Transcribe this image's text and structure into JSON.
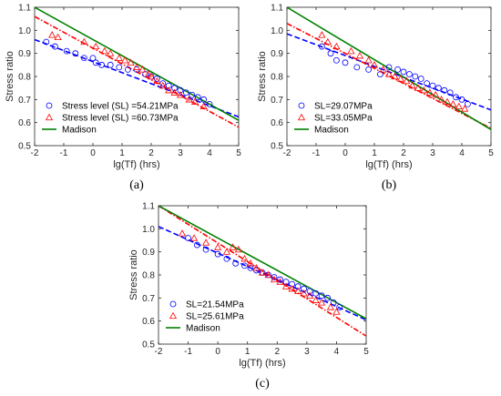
{
  "colors": {
    "series1": "#0000ff",
    "series2": "#ff0000",
    "madison": "#008000",
    "axis": "#262626"
  },
  "chart_data": [
    {
      "panel_label": "(a)",
      "type": "scatter",
      "xlabel": "lg(Tf) (hrs)",
      "ylabel": "Stress ratio",
      "xlim": [
        -2,
        5
      ],
      "ylim": [
        0.5,
        1.1
      ],
      "xticks": [
        "-2",
        "-1",
        "0",
        "1",
        "2",
        "3",
        "4",
        "5"
      ],
      "yticks": [
        "0.5",
        "0.6",
        "0.7",
        "0.8",
        "0.9",
        "1.0",
        "1.1"
      ],
      "legend_position": "bottom-left",
      "series": [
        {
          "name": "Stress level (SL) =54.21MPa",
          "marker": "circle",
          "color": "#0000ff",
          "points": [
            [
              -1.6,
              0.95
            ],
            [
              -1.3,
              0.93
            ],
            [
              -0.9,
              0.91
            ],
            [
              -0.6,
              0.9
            ],
            [
              -0.3,
              0.88
            ],
            [
              0.0,
              0.88
            ],
            [
              0.1,
              0.86
            ],
            [
              0.3,
              0.85
            ],
            [
              0.6,
              0.85
            ],
            [
              0.9,
              0.84
            ],
            [
              1.2,
              0.83
            ],
            [
              1.5,
              0.83
            ],
            [
              1.8,
              0.81
            ],
            [
              2.0,
              0.8
            ],
            [
              2.2,
              0.79
            ],
            [
              2.4,
              0.77
            ],
            [
              2.6,
              0.76
            ],
            [
              2.8,
              0.75
            ],
            [
              3.0,
              0.74
            ],
            [
              3.2,
              0.73
            ],
            [
              3.4,
              0.72
            ],
            [
              3.6,
              0.71
            ],
            [
              3.8,
              0.7
            ],
            [
              4.0,
              0.68
            ]
          ],
          "fit_line": [
            [
              -2,
              0.96
            ],
            [
              5,
              0.625
            ]
          ]
        },
        {
          "name": "Stress level (SL) =60.73MPa",
          "marker": "triangle",
          "color": "#ff0000",
          "points": [
            [
              -1.4,
              0.98
            ],
            [
              -1.2,
              0.97
            ],
            [
              -0.3,
              0.95
            ],
            [
              0.1,
              0.93
            ],
            [
              0.4,
              0.91
            ],
            [
              0.6,
              0.9
            ],
            [
              0.9,
              0.88
            ],
            [
              1.1,
              0.87
            ],
            [
              1.3,
              0.86
            ],
            [
              1.5,
              0.84
            ],
            [
              1.7,
              0.83
            ],
            [
              1.9,
              0.81
            ],
            [
              2.0,
              0.8
            ],
            [
              2.2,
              0.78
            ],
            [
              2.4,
              0.76
            ],
            [
              2.6,
              0.74
            ],
            [
              2.8,
              0.73
            ],
            [
              3.0,
              0.72
            ],
            [
              3.3,
              0.7
            ],
            [
              3.5,
              0.69
            ],
            [
              3.8,
              0.67
            ]
          ],
          "fit_line": [
            [
              -2,
              1.06
            ],
            [
              5,
              0.58
            ]
          ]
        },
        {
          "name": "Madison",
          "line_style": "solid",
          "color": "#008000",
          "points": [
            [
              -2,
              1.1
            ],
            [
              5,
              0.61
            ]
          ]
        }
      ]
    },
    {
      "panel_label": "(b)",
      "type": "scatter",
      "xlabel": "lg(Tf) (hrs)",
      "ylabel": "Stress ratio",
      "xlim": [
        -2,
        5
      ],
      "ylim": [
        0.5,
        1.1
      ],
      "xticks": [
        "-2",
        "-1",
        "0",
        "1",
        "2",
        "3",
        "4",
        "5"
      ],
      "yticks": [
        "0.5",
        "0.6",
        "0.7",
        "0.8",
        "0.9",
        "1.0",
        "1.1"
      ],
      "legend_position": "bottom-left",
      "series": [
        {
          "name": "SL=29.07MPa",
          "marker": "circle",
          "color": "#0000ff",
          "points": [
            [
              -0.8,
              0.93
            ],
            [
              -0.5,
              0.9
            ],
            [
              -0.3,
              0.87
            ],
            [
              0.0,
              0.86
            ],
            [
              0.4,
              0.84
            ],
            [
              0.8,
              0.83
            ],
            [
              1.2,
              0.81
            ],
            [
              1.5,
              0.84
            ],
            [
              1.8,
              0.83
            ],
            [
              2.0,
              0.82
            ],
            [
              2.2,
              0.81
            ],
            [
              2.4,
              0.8
            ],
            [
              2.6,
              0.79
            ],
            [
              2.8,
              0.77
            ],
            [
              3.0,
              0.76
            ],
            [
              3.2,
              0.75
            ],
            [
              3.4,
              0.74
            ],
            [
              3.6,
              0.73
            ],
            [
              3.8,
              0.71
            ],
            [
              4.0,
              0.7
            ],
            [
              4.2,
              0.68
            ]
          ],
          "fit_line": [
            [
              -2,
              0.985
            ],
            [
              5,
              0.655
            ]
          ]
        },
        {
          "name": "SL=33.05MPa",
          "marker": "triangle",
          "color": "#ff0000",
          "points": [
            [
              -0.8,
              0.98
            ],
            [
              -0.6,
              0.95
            ],
            [
              -0.3,
              0.93
            ],
            [
              0.2,
              0.91
            ],
            [
              0.5,
              0.89
            ],
            [
              0.8,
              0.87
            ],
            [
              1.0,
              0.85
            ],
            [
              1.3,
              0.83
            ],
            [
              1.5,
              0.81
            ],
            [
              1.7,
              0.8
            ],
            [
              1.9,
              0.79
            ],
            [
              2.1,
              0.78
            ],
            [
              2.3,
              0.76
            ],
            [
              2.5,
              0.75
            ],
            [
              2.7,
              0.74
            ],
            [
              2.9,
              0.73
            ],
            [
              3.1,
              0.72
            ],
            [
              3.3,
              0.7
            ],
            [
              3.5,
              0.69
            ],
            [
              3.7,
              0.68
            ],
            [
              3.9,
              0.67
            ],
            [
              4.1,
              0.66
            ]
          ],
          "fit_line": [
            [
              -2,
              1.03
            ],
            [
              5,
              0.575
            ]
          ]
        },
        {
          "name": "Madison",
          "line_style": "solid",
          "color": "#008000",
          "points": [
            [
              -2,
              1.1
            ],
            [
              5,
              0.57
            ]
          ]
        }
      ]
    },
    {
      "panel_label": "(c)",
      "type": "scatter",
      "xlabel": "lg(Tf) (hrs)",
      "ylabel": "Stress ratio",
      "xlim": [
        -2,
        5
      ],
      "ylim": [
        0.5,
        1.1
      ],
      "xticks": [
        "-2",
        "-1",
        "0",
        "1",
        "2",
        "3",
        "4",
        "5"
      ],
      "yticks": [
        "0.5",
        "0.6",
        "0.7",
        "0.8",
        "0.9",
        "1.0",
        "1.1"
      ],
      "legend_position": "bottom-left",
      "series": [
        {
          "name": "SL=21.54MPa",
          "marker": "circle",
          "color": "#0000ff",
          "points": [
            [
              -1.0,
              0.96
            ],
            [
              -0.7,
              0.93
            ],
            [
              -0.4,
              0.91
            ],
            [
              0.0,
              0.89
            ],
            [
              0.3,
              0.87
            ],
            [
              0.6,
              0.85
            ],
            [
              0.9,
              0.84
            ],
            [
              1.1,
              0.83
            ],
            [
              1.3,
              0.82
            ],
            [
              1.5,
              0.81
            ],
            [
              1.7,
              0.8
            ],
            [
              1.9,
              0.79
            ],
            [
              2.1,
              0.78
            ],
            [
              2.3,
              0.77
            ],
            [
              2.5,
              0.76
            ],
            [
              2.7,
              0.75
            ],
            [
              2.9,
              0.74
            ],
            [
              3.1,
              0.73
            ],
            [
              3.3,
              0.72
            ],
            [
              3.5,
              0.71
            ],
            [
              3.7,
              0.7
            ],
            [
              3.9,
              0.68
            ],
            [
              4.1,
              0.66
            ]
          ],
          "fit_line": [
            [
              -2,
              1.01
            ],
            [
              5,
              0.605
            ]
          ]
        },
        {
          "name": "SL=25.61MPa",
          "marker": "triangle",
          "color": "#ff0000",
          "points": [
            [
              -1.2,
              0.98
            ],
            [
              -0.8,
              0.96
            ],
            [
              -0.4,
              0.94
            ],
            [
              0.0,
              0.92
            ],
            [
              0.3,
              0.9
            ],
            [
              0.5,
              0.92
            ],
            [
              0.7,
              0.91
            ],
            [
              0.9,
              0.87
            ],
            [
              1.1,
              0.85
            ],
            [
              1.3,
              0.83
            ],
            [
              1.5,
              0.81
            ],
            [
              1.7,
              0.8
            ],
            [
              1.9,
              0.78
            ],
            [
              2.1,
              0.77
            ],
            [
              2.3,
              0.75
            ],
            [
              2.5,
              0.74
            ],
            [
              2.7,
              0.73
            ],
            [
              2.9,
              0.72
            ],
            [
              3.1,
              0.71
            ],
            [
              3.3,
              0.69
            ],
            [
              3.5,
              0.68
            ],
            [
              3.8,
              0.66
            ],
            [
              4.0,
              0.64
            ]
          ],
          "fit_line": [
            [
              -2,
              1.1
            ],
            [
              5,
              0.535
            ]
          ]
        },
        {
          "name": "Madison",
          "line_style": "solid",
          "color": "#008000",
          "points": [
            [
              -2,
              1.1
            ],
            [
              5,
              0.61
            ]
          ]
        }
      ]
    }
  ]
}
